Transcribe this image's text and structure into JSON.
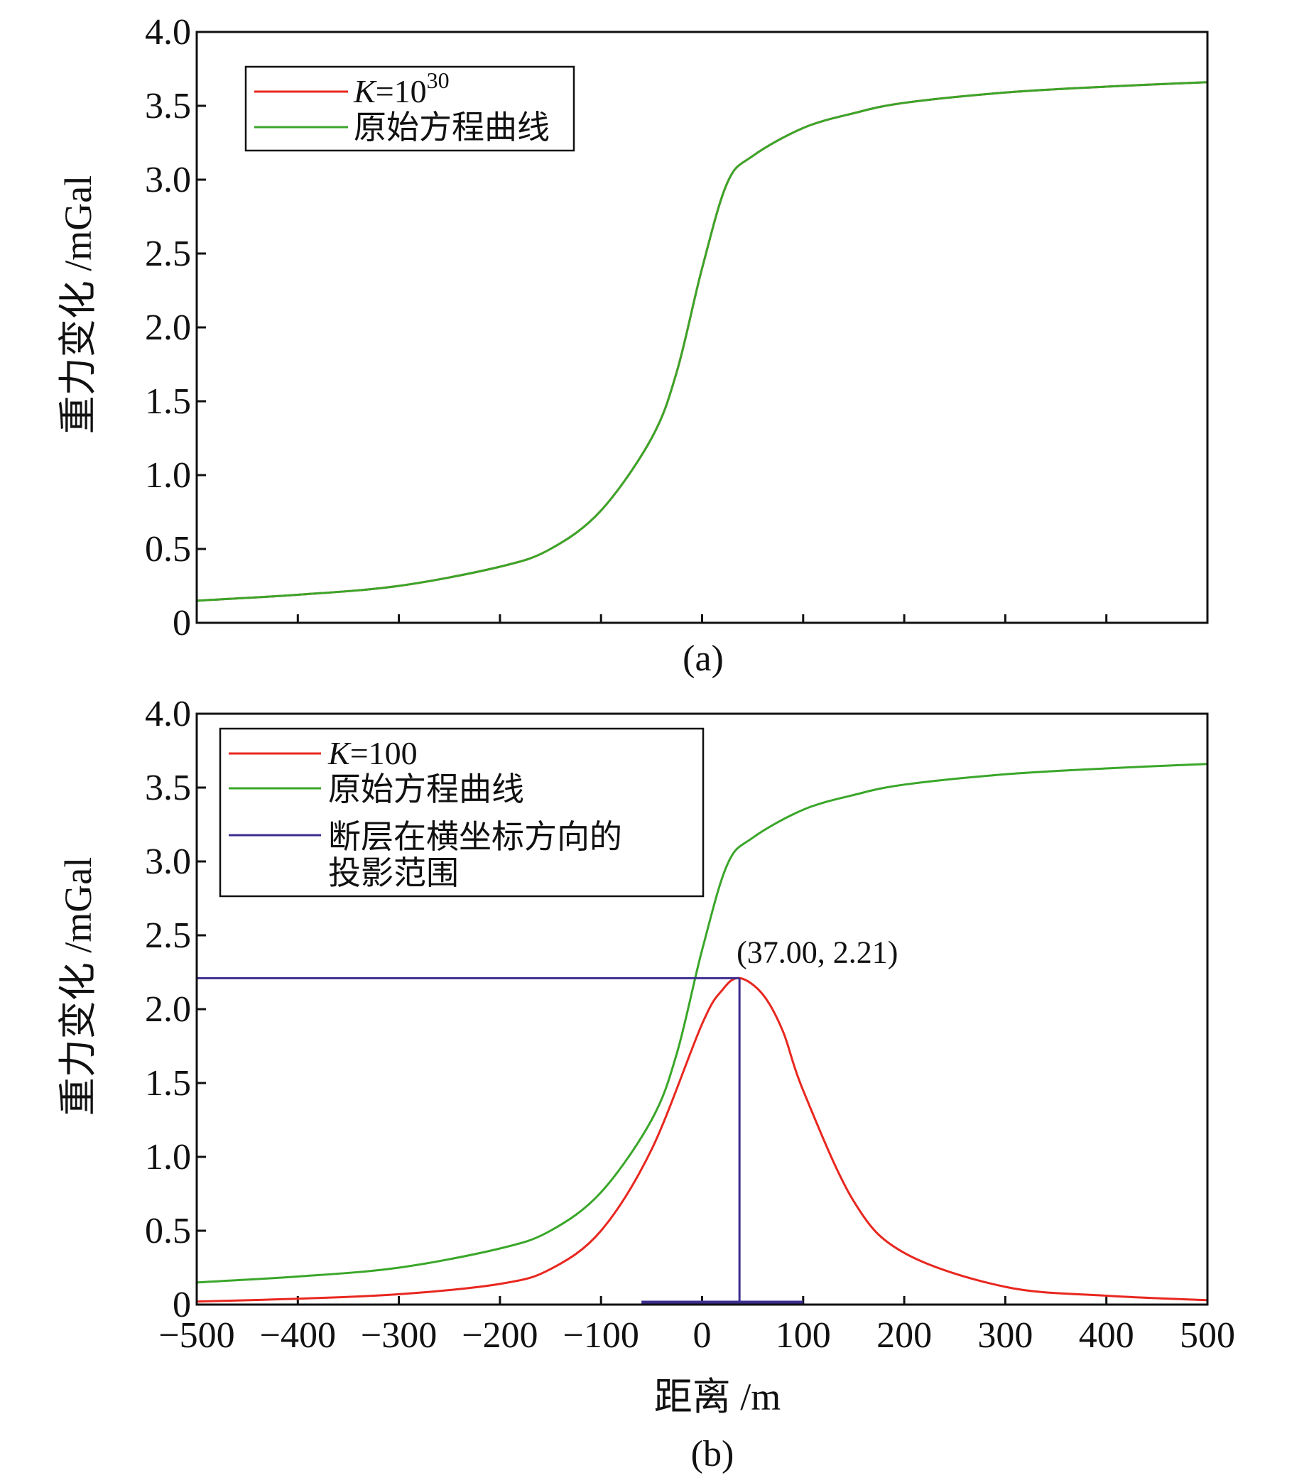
{
  "chart_data": [
    {
      "type": "line",
      "panel_label": "(a)",
      "ylabel": "重力变化 /mGal",
      "xlabel": "",
      "xlim": [
        -500,
        500
      ],
      "ylim": [
        0,
        4.0
      ],
      "xticks": [
        -500,
        -400,
        -300,
        -200,
        -100,
        0,
        100,
        200,
        300,
        400,
        500
      ],
      "xtick_labels_visible": false,
      "yticks": [
        0,
        0.5,
        1.0,
        1.5,
        2.0,
        2.5,
        3.0,
        3.5,
        4.0
      ],
      "ytick_labels": [
        "0",
        "0.5",
        "1.0",
        "1.5",
        "2.0",
        "2.5",
        "3.0",
        "3.5",
        "4.0"
      ],
      "grid": false,
      "legend_position": "top-left",
      "legend": [
        {
          "base": "K",
          "text": "=10",
          "sup": "30",
          "color": "#e8271f"
        },
        {
          "text": "原始方程曲线",
          "color": "#3aa62a"
        }
      ],
      "series": [
        {
          "color": "#e8271f",
          "x": [
            -500,
            -400,
            -300,
            -200,
            -150,
            -100,
            -50,
            -25,
            0,
            25,
            50,
            100,
            150,
            200,
            300,
            400,
            500
          ],
          "y": [
            0.15,
            0.19,
            0.25,
            0.38,
            0.5,
            0.76,
            1.25,
            1.7,
            2.4,
            2.98,
            3.16,
            3.35,
            3.45,
            3.52,
            3.59,
            3.63,
            3.66
          ]
        },
        {
          "color": "#3aa62a",
          "x": [
            -500,
            -400,
            -300,
            -200,
            -150,
            -100,
            -50,
            -25,
            0,
            25,
            50,
            100,
            150,
            200,
            300,
            400,
            500
          ],
          "y": [
            0.15,
            0.19,
            0.25,
            0.38,
            0.5,
            0.76,
            1.25,
            1.7,
            2.4,
            2.98,
            3.16,
            3.35,
            3.45,
            3.52,
            3.59,
            3.63,
            3.66
          ]
        }
      ]
    },
    {
      "type": "line",
      "panel_label": "(b)",
      "ylabel": "重力变化 /mGal",
      "xlabel": "距离 /m",
      "xlim": [
        -500,
        500
      ],
      "ylim": [
        0,
        4.0
      ],
      "xticks": [
        -500,
        -400,
        -300,
        -200,
        -100,
        0,
        100,
        200,
        300,
        400,
        500
      ],
      "xtick_labels": [
        "−500",
        "−400",
        "−300",
        "−200",
        "−100",
        "0",
        "100",
        "200",
        "300",
        "400",
        "500"
      ],
      "xtick_labels_visible": true,
      "yticks": [
        0,
        0.5,
        1.0,
        1.5,
        2.0,
        2.5,
        3.0,
        3.5,
        4.0
      ],
      "ytick_labels": [
        "0",
        "0.5",
        "1.0",
        "1.5",
        "2.0",
        "2.5",
        "3.0",
        "3.5",
        "4.0"
      ],
      "grid": false,
      "legend_position": "top-left",
      "legend": [
        {
          "base": "K",
          "text": "=100",
          "color": "#e8271f"
        },
        {
          "text": "原始方程曲线",
          "color": "#3aa62a"
        },
        {
          "text": "断层在横坐标方向的",
          "text2": "投影范围",
          "color": "#3b2d8f"
        }
      ],
      "series": [
        {
          "color": "#e8271f",
          "x": [
            -500,
            -400,
            -300,
            -200,
            -150,
            -100,
            -50,
            0,
            20,
            37,
            60,
            80,
            100,
            150,
            200,
            300,
            400,
            500
          ],
          "y": [
            0.02,
            0.04,
            0.07,
            0.14,
            0.24,
            0.5,
            1.05,
            1.9,
            2.13,
            2.21,
            2.1,
            1.85,
            1.45,
            0.7,
            0.35,
            0.12,
            0.06,
            0.03
          ]
        },
        {
          "color": "#3aa62a",
          "x": [
            -500,
            -400,
            -300,
            -200,
            -150,
            -100,
            -50,
            -25,
            0,
            25,
            50,
            100,
            150,
            200,
            300,
            400,
            500
          ],
          "y": [
            0.15,
            0.19,
            0.25,
            0.38,
            0.5,
            0.76,
            1.25,
            1.7,
            2.4,
            2.98,
            3.16,
            3.35,
            3.45,
            3.52,
            3.59,
            3.63,
            3.66
          ]
        }
      ],
      "projection_range": {
        "x": [
          -60,
          100
        ],
        "color": "#3b2d8f"
      },
      "peak_marker": {
        "x": 37.0,
        "y": 2.21,
        "label": "(37.00, 2.21)",
        "color": "#3b2d8f"
      }
    }
  ]
}
